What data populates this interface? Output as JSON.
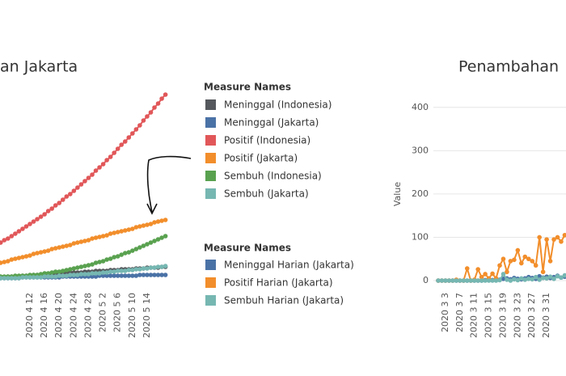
{
  "chart_data": [
    {
      "type": "line",
      "title": "an Jakarta",
      "legend_title": "Measure Names",
      "categories": [
        null,
        null,
        null,
        null,
        null,
        null,
        null,
        null,
        "2020 4 12",
        null,
        null,
        null,
        "2020 4 16",
        null,
        null,
        null,
        "2020 4 20",
        null,
        null,
        null,
        "2020 4 24",
        null,
        null,
        null,
        "2020 4 28",
        null,
        null,
        null,
        "2020 5 2",
        null,
        null,
        null,
        "2020 5 6",
        null,
        null,
        null,
        "2020 5 10",
        null,
        null,
        null,
        "2020 5 14",
        null,
        null,
        null,
        null,
        null
      ],
      "ylim": [
        0,
        250
      ],
      "series": [
        {
          "name": "Meninggal (Indonesia)",
          "color": "#55585c",
          "values": [
            2,
            2,
            3,
            3,
            3,
            3,
            4,
            4,
            4,
            5,
            5,
            5,
            5,
            6,
            6,
            6,
            7,
            7,
            7,
            8,
            8,
            8,
            8,
            9,
            9,
            9,
            10,
            10,
            10,
            10,
            11,
            11,
            11,
            12,
            12,
            12,
            12,
            13,
            13,
            13,
            14,
            14,
            14,
            14,
            15,
            15
          ]
        },
        {
          "name": "Meninggal (Jakarta)",
          "color": "#4a72a6",
          "values": [
            1,
            1,
            1,
            1,
            1,
            1,
            2,
            2,
            2,
            2,
            2,
            2,
            2,
            2,
            2,
            2,
            2,
            3,
            3,
            3,
            3,
            3,
            3,
            3,
            3,
            3,
            3,
            4,
            4,
            4,
            4,
            4,
            4,
            4,
            4,
            4,
            4,
            4,
            5,
            5,
            5,
            5,
            5,
            5,
            5,
            5
          ]
        },
        {
          "name": "Positif (Indonesia)",
          "color": "#e15759",
          "values": [
            45,
            48,
            50,
            53,
            56,
            59,
            62,
            65,
            68,
            71,
            74,
            77,
            80,
            84,
            87,
            91,
            94,
            98,
            102,
            105,
            109,
            113,
            117,
            121,
            125,
            129,
            134,
            138,
            142,
            147,
            151,
            156,
            161,
            166,
            170,
            175,
            180,
            185,
            190,
            196,
            201,
            206,
            212,
            217,
            223,
            228
          ]
        },
        {
          "name": "Positif (Jakarta)",
          "color": "#f28e2b",
          "values": [
            20,
            21,
            22,
            24,
            25,
            26,
            27,
            28,
            29,
            31,
            32,
            33,
            34,
            35,
            37,
            38,
            39,
            40,
            41,
            42,
            44,
            45,
            46,
            47,
            48,
            50,
            51,
            52,
            53,
            54,
            56,
            57,
            58,
            59,
            60,
            61,
            62,
            64,
            65,
            66,
            67,
            68,
            70,
            71,
            72,
            73
          ]
        },
        {
          "name": "Sembuh (Indonesia)",
          "color": "#59a14f",
          "values": [
            3,
            3,
            3,
            3,
            4,
            4,
            4,
            4,
            5,
            5,
            5,
            6,
            7,
            7,
            8,
            9,
            9,
            10,
            11,
            12,
            13,
            14,
            15,
            16,
            17,
            18,
            20,
            21,
            22,
            24,
            25,
            27,
            28,
            30,
            32,
            33,
            35,
            37,
            39,
            41,
            43,
            45,
            47,
            49,
            51,
            53
          ]
        },
        {
          "name": "Sembuh (Jakarta)",
          "color": "#76b7b2",
          "values": [
            1,
            1,
            1,
            1,
            1,
            1,
            2,
            2,
            2,
            2,
            2,
            2,
            3,
            3,
            3,
            3,
            4,
            4,
            4,
            5,
            5,
            5,
            6,
            6,
            6,
            7,
            7,
            7,
            8,
            8,
            9,
            9,
            10,
            10,
            10,
            11,
            11,
            12,
            12,
            13,
            13,
            14,
            14,
            15,
            15,
            16
          ]
        }
      ]
    },
    {
      "type": "line",
      "title": "Penambahan",
      "y_label": "Value",
      "legend_title": "Measure Names",
      "categories": [
        null,
        null,
        "2020 3 3",
        null,
        null,
        null,
        "2020 3 7",
        null,
        null,
        null,
        "2020 3 11",
        null,
        null,
        null,
        "2020 3 15",
        null,
        null,
        null,
        "2020 3 19",
        null,
        null,
        null,
        "2020 3 23",
        null,
        null,
        null,
        "2020 3 27",
        null,
        null,
        null,
        "2020 3 31",
        null,
        null,
        null,
        null,
        null
      ],
      "ylim": [
        0,
        450
      ],
      "yticks": [
        0,
        100,
        200,
        300,
        400
      ],
      "grid": true,
      "series": [
        {
          "name": "Meninggal Harian (Jakarta)",
          "color": "#4a72a6",
          "values": [
            0,
            0,
            0,
            0,
            0,
            0,
            0,
            0,
            0,
            0,
            0,
            0,
            0,
            1,
            2,
            1,
            3,
            2,
            4,
            5,
            3,
            6,
            4,
            3,
            5,
            8,
            6,
            4,
            10,
            7,
            9,
            6,
            8,
            11,
            7,
            9
          ]
        },
        {
          "name": "Positif Harian (Jakarta)",
          "color": "#f28e2b",
          "values": [
            0,
            0,
            0,
            0,
            0,
            2,
            0,
            0,
            28,
            0,
            2,
            26,
            8,
            15,
            5,
            16,
            5,
            35,
            50,
            20,
            45,
            48,
            70,
            40,
            55,
            50,
            45,
            35,
            100,
            20,
            95,
            45,
            95,
            100,
            90,
            105
          ]
        },
        {
          "name": "Sembuh Harian (Jakarta)",
          "color": "#76b7b2",
          "values": [
            0,
            0,
            0,
            0,
            0,
            0,
            0,
            0,
            0,
            0,
            0,
            0,
            0,
            0,
            0,
            0,
            0,
            1,
            15,
            2,
            0,
            3,
            1,
            5,
            2,
            4,
            3,
            8,
            2,
            6,
            5,
            9,
            4,
            10,
            7,
            12
          ]
        }
      ]
    }
  ]
}
